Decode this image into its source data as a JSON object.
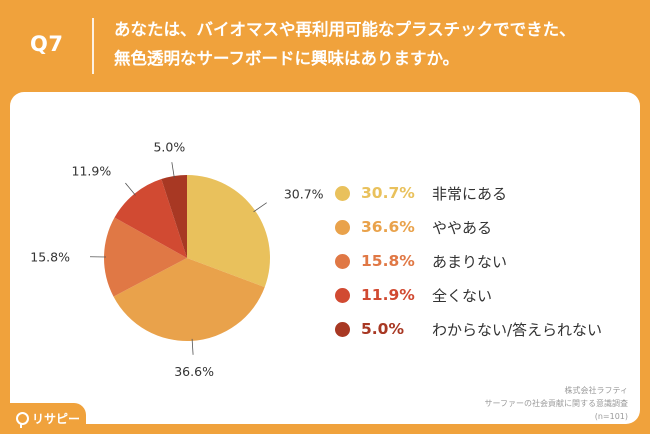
{
  "header": {
    "qnum": "Q7",
    "question_line1": "あなたは、バイオマスや再利用可能なプラスチックでできた、",
    "question_line2": "無色透明なサーフボードに興味はありますか。"
  },
  "chart_data": {
    "type": "pie",
    "start": "12 o'clock, clockwise",
    "series": [
      {
        "label": "非常にある",
        "value": 30.7,
        "value_text": "30.7%",
        "color": "#e9c15c"
      },
      {
        "label": "ややある",
        "value": 36.6,
        "value_text": "36.6%",
        "color": "#e9a24b"
      },
      {
        "label": "あまりない",
        "value": 15.8,
        "value_text": "15.8%",
        "color": "#e07845"
      },
      {
        "label": "全くない",
        "value": 11.9,
        "value_text": "11.9%",
        "color": "#d14a32"
      },
      {
        "label": "わからない/答えられない",
        "value": 5.0,
        "value_text": "5.0%",
        "color": "#a83823"
      }
    ]
  },
  "source": {
    "line1": "株式会社ラフティ",
    "line2": "サーファーの社会貢献に関する意識調査",
    "line3": "(n=101)"
  },
  "logo": {
    "text": "リサピー",
    "icon": "risapi-logo-icon"
  }
}
